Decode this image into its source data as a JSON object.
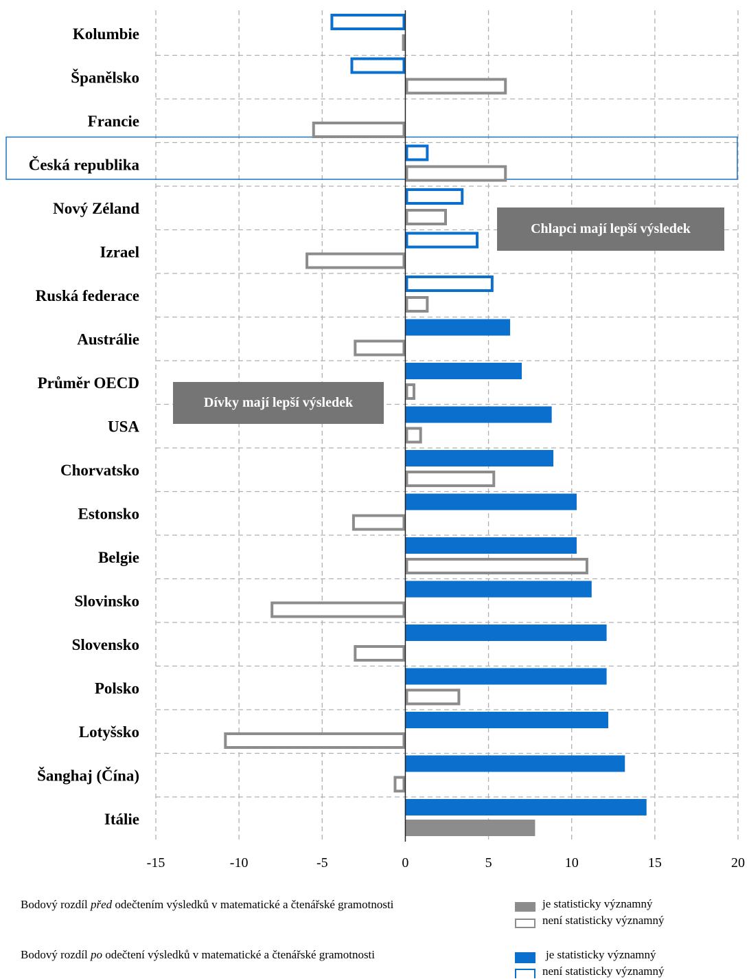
{
  "chart_data": {
    "type": "bar",
    "orientation": "horizontal",
    "categories": [
      "Kolumbie",
      "Španělsko",
      "Francie",
      "Česká republika",
      "Nový Zéland",
      "Izrael",
      "Ruská federace",
      "Austrálie",
      "Průměr OECD",
      "USA",
      "Chorvatsko",
      "Estonsko",
      "Belgie",
      "Slovinsko",
      "Slovensko",
      "Polsko",
      "Lotyšsko",
      "Šanghaj (Čína)",
      "Itálie"
    ],
    "highlighted_category": "Česká republika",
    "xlim": [
      -15,
      20
    ],
    "xticks": [
      -15,
      -10,
      -5,
      0,
      5,
      10,
      15,
      20
    ],
    "grid": true,
    "series": [
      {
        "name": "Bodový rozdíl po odečtení výsledků v matematické a čtenářské gramotnosti",
        "color": "#0b6fce",
        "values": [
          -4.5,
          -3.3,
          0,
          1.4,
          3.5,
          4.4,
          5.3,
          6.3,
          7.0,
          8.8,
          8.9,
          10.3,
          10.3,
          11.2,
          12.1,
          12.1,
          12.2,
          13.2,
          14.5
        ],
        "significant": [
          false,
          false,
          false,
          false,
          false,
          false,
          false,
          true,
          true,
          true,
          true,
          true,
          true,
          true,
          true,
          true,
          true,
          true,
          true
        ]
      },
      {
        "name": "Bodový rozdíl před odečtením výsledků v matematické a čtenářské gramotnosti",
        "color": "#8c8c8c",
        "values": [
          -0.2,
          6.1,
          -5.6,
          6.1,
          2.5,
          -6.0,
          1.4,
          -3.1,
          0.6,
          1.0,
          5.4,
          -3.2,
          11.0,
          -8.1,
          -3.1,
          3.3,
          -10.9,
          -0.7,
          7.8
        ],
        "significant": [
          true,
          false,
          false,
          false,
          false,
          false,
          false,
          false,
          false,
          false,
          false,
          false,
          false,
          false,
          false,
          false,
          false,
          false,
          true
        ]
      }
    ],
    "annotations": [
      "Chlapci mají lepší výsledek",
      "Dívky mají lepší výsledek"
    ]
  },
  "legend": {
    "before": {
      "prefix": "Bodový rozdíl ",
      "emph": "před",
      "suffix": " odečtením výsledků v matematické a čtenářské gramotnosti"
    },
    "after": {
      "prefix": "Bodový rozdíl ",
      "emph": "po",
      "suffix": " odečtení výsledků v matematické a čtenářské gramotnosti"
    },
    "significant": "je statisticky významný",
    "not_significant": "není statisticky významný"
  },
  "colors": {
    "blue": "#0b6fce",
    "gray": "#8c8c8c",
    "grid": "#b0b0b0",
    "annotation_bg": "#757575",
    "highlight_border": "#1a73c4"
  }
}
